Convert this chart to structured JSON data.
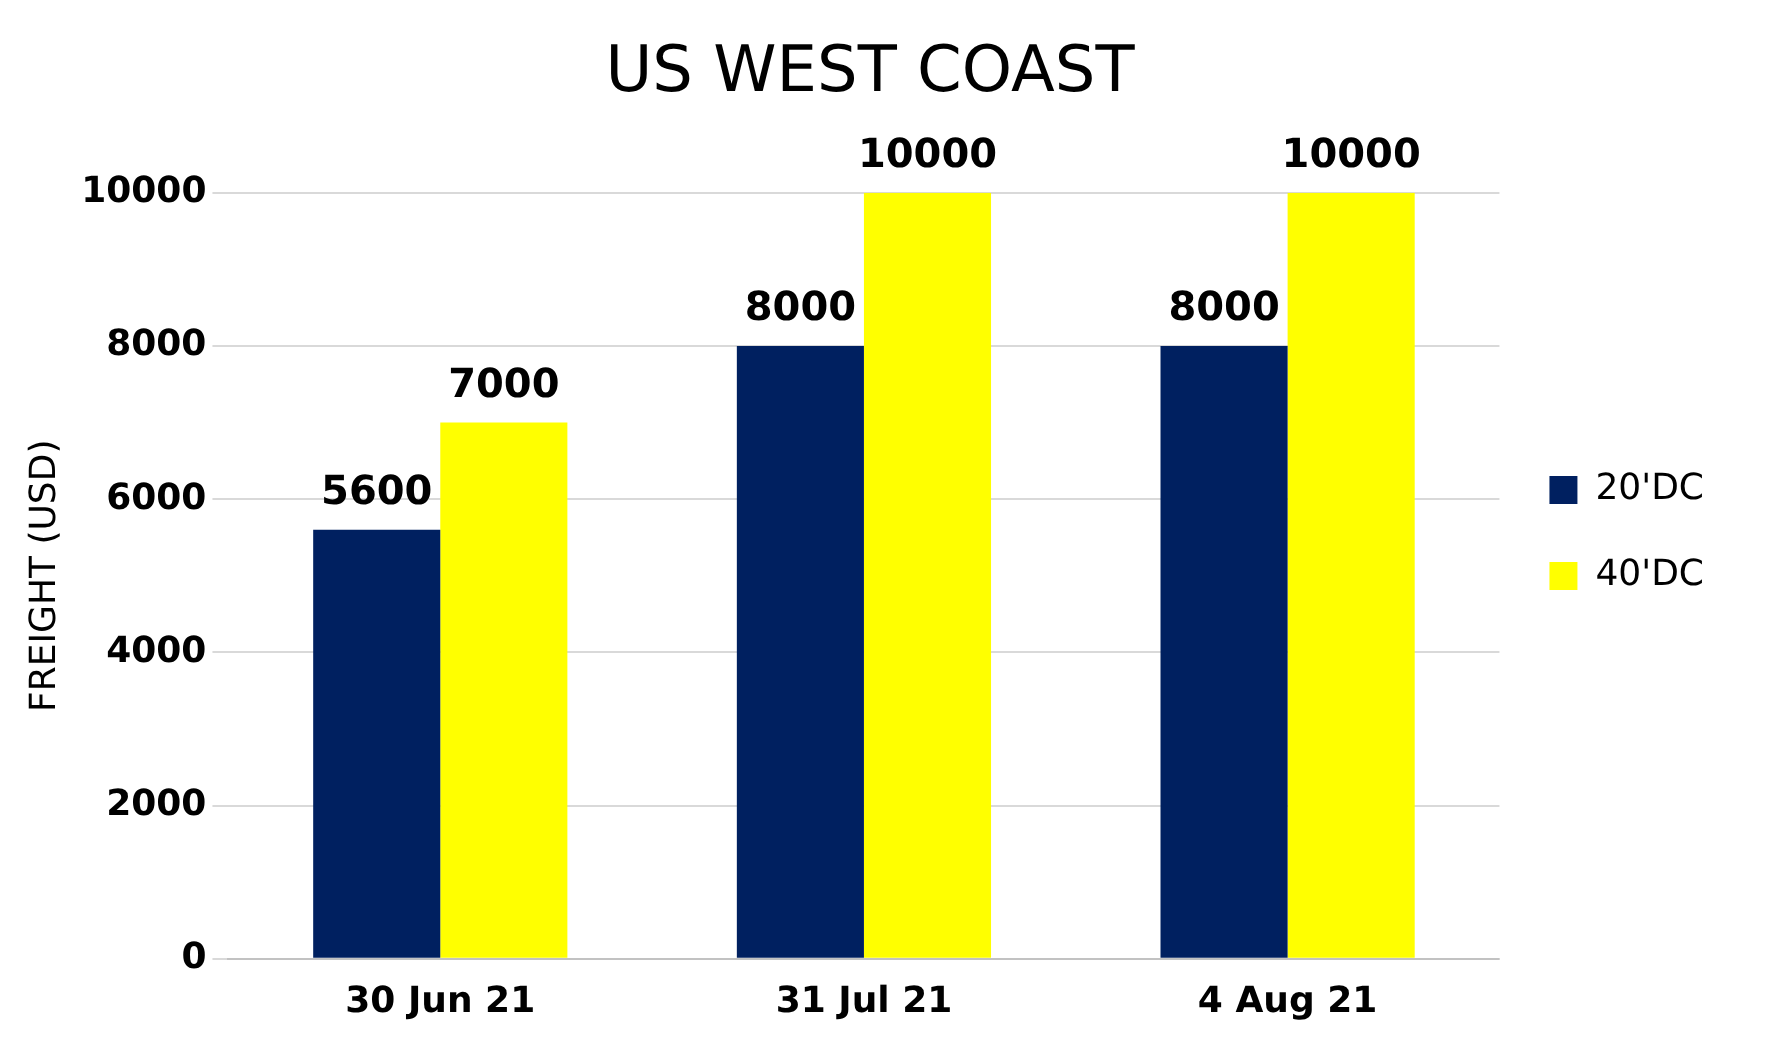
{
  "chart_data": {
    "type": "bar",
    "title": "US WEST COAST",
    "ylabel": "FREIGHT (USD)",
    "categories": [
      "30 Jun 21",
      "31 Jul 21",
      "4 Aug 21"
    ],
    "series": [
      {
        "name": "20'DC",
        "color": "#002060",
        "values": [
          5600,
          8000,
          8000
        ]
      },
      {
        "name": "40'DC",
        "color": "#ffff00",
        "values": [
          7000,
          10000,
          10000
        ]
      }
    ],
    "ylim": [
      0,
      10000
    ],
    "yticks": [
      0,
      2000,
      4000,
      6000,
      8000,
      10000
    ],
    "grid": "y",
    "legend": "right",
    "data_labels": true
  }
}
